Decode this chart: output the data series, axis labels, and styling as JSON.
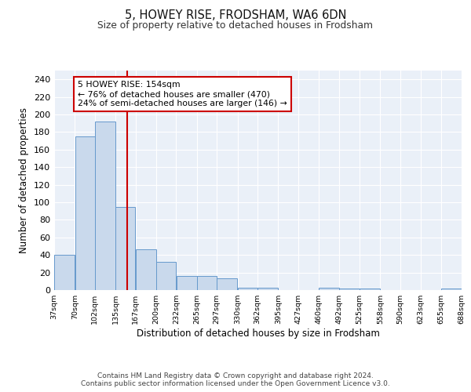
{
  "title1": "5, HOWEY RISE, FRODSHAM, WA6 6DN",
  "title2": "Size of property relative to detached houses in Frodsham",
  "xlabel": "Distribution of detached houses by size in Frodsham",
  "ylabel": "Number of detached properties",
  "bar_edges": [
    37,
    70,
    102,
    135,
    167,
    200,
    232,
    265,
    297,
    330,
    362,
    395,
    427,
    460,
    492,
    525,
    558,
    590,
    623,
    655,
    688
  ],
  "bar_heights": [
    40,
    175,
    192,
    95,
    46,
    32,
    16,
    16,
    13,
    3,
    3,
    0,
    0,
    3,
    2,
    2,
    0,
    0,
    0,
    2
  ],
  "tick_labels": [
    "37sqm",
    "70sqm",
    "102sqm",
    "135sqm",
    "167sqm",
    "200sqm",
    "232sqm",
    "265sqm",
    "297sqm",
    "330sqm",
    "362sqm",
    "395sqm",
    "427sqm",
    "460sqm",
    "492sqm",
    "525sqm",
    "558sqm",
    "590sqm",
    "623sqm",
    "655sqm",
    "688sqm"
  ],
  "bar_color": "#c9d9ec",
  "bar_edge_color": "#6699cc",
  "vline_x": 154,
  "vline_color": "#cc0000",
  "annotation_text": "5 HOWEY RISE: 154sqm\n← 76% of detached houses are smaller (470)\n24% of semi-detached houses are larger (146) →",
  "annotation_box_color": "#ffffff",
  "annotation_box_edge": "#cc0000",
  "background_color": "#eaf0f8",
  "footer_text": "Contains HM Land Registry data © Crown copyright and database right 2024.\nContains public sector information licensed under the Open Government Licence v3.0.",
  "ylim": [
    0,
    250
  ],
  "yticks": [
    0,
    20,
    40,
    60,
    80,
    100,
    120,
    140,
    160,
    180,
    200,
    220,
    240
  ]
}
